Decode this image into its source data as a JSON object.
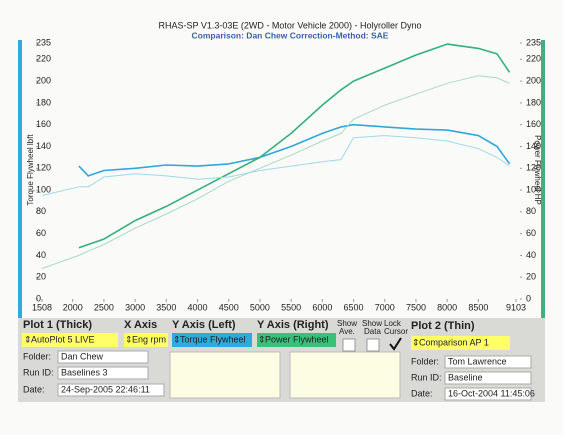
{
  "chart_data": {
    "type": "line",
    "title": "RHAS-SP V1.3-03E  (2WD - Motor Vehicle 2000) - Holyroller Dyno",
    "subtitle": "Comparison: Dan Chew   Correction-Method: SAE",
    "ylabel": "Torque Flywheel lbft",
    "y2label": "Power Flywheel HP",
    "x": [
      1508,
      2100,
      2250,
      2500,
      3000,
      3500,
      4000,
      4500,
      5000,
      5500,
      6000,
      6300,
      6500,
      7000,
      7500,
      8000,
      8500,
      8800,
      9000
    ],
    "xlim": [
      1508,
      9103
    ],
    "xticks": [
      1508,
      2000,
      2500,
      3000,
      3500,
      4000,
      4500,
      5000,
      5500,
      6000,
      6500,
      7000,
      7500,
      8000,
      8500,
      9103
    ],
    "ylim": [
      0,
      235
    ],
    "yticks": [
      0,
      20,
      40,
      60,
      80,
      100,
      120,
      140,
      160,
      180,
      200,
      220,
      235
    ],
    "y2lim": [
      0,
      235
    ],
    "y2ticks": [
      0,
      20,
      40,
      60,
      80,
      100,
      120,
      140,
      160,
      180,
      200,
      220,
      235
    ],
    "series": [
      {
        "name": "Torque Flywheel",
        "color": "#2ea8dc",
        "width": 1.6,
        "values": [
          null,
          122,
          113,
          118,
          120,
          123,
          122,
          124,
          130,
          140,
          152,
          158,
          160,
          158,
          156,
          155,
          150,
          140,
          124
        ]
      },
      {
        "name": "Power Flywheel",
        "color": "#35b07a",
        "width": 1.6,
        "axis": "y2",
        "values": [
          null,
          47,
          50,
          55,
          72,
          85,
          100,
          115,
          130,
          152,
          178,
          192,
          200,
          212,
          224,
          234,
          230,
          225,
          208
        ]
      },
      {
        "name": "Torque Flywheel",
        "color": "#9fd8ee",
        "width": 1,
        "values": [
          95,
          103,
          103,
          112,
          115,
          113,
          110,
          112,
          118,
          122,
          126,
          128,
          148,
          150,
          148,
          145,
          138,
          130,
          122
        ]
      },
      {
        "name": "Power Flywheel",
        "color": "#a6dcc2",
        "width": 1,
        "axis": "y2",
        "values": [
          28,
          40,
          44,
          50,
          65,
          78,
          92,
          108,
          120,
          132,
          145,
          152,
          165,
          178,
          188,
          198,
          205,
          203,
          198
        ]
      }
    ]
  },
  "panel": {
    "plot1": {
      "heading": "Plot 1 (Thick)",
      "select": "AutoPlot 5 LIVE",
      "folder_label": "Folder:",
      "folder": "Dan Chew",
      "run_label": "Run ID:",
      "run": "Baselines 3",
      "date_label": "Date:",
      "date": "24-Sep-2005  22:46:11"
    },
    "x_axis": {
      "heading": "X Axis",
      "select": "Eng rpm"
    },
    "y_left": {
      "heading": "Y Axis (Left)",
      "select": "Torque Flywheel"
    },
    "y_right": {
      "heading": "Y Axis (Right)",
      "select": "Power Flywheel"
    },
    "show_ave": [
      "Show",
      "Ave."
    ],
    "show_data": [
      "Show",
      "Data"
    ],
    "lock_cursor": [
      "Lock",
      "Cursor"
    ],
    "plot2": {
      "heading": "Plot 2 (Thin)",
      "select": "Comparison AP 1",
      "folder_label": "Folder:",
      "folder": "Tom Lawrence",
      "run_label": "Run ID:",
      "run": "Baseline",
      "date_label": "Date:",
      "date": "16-Oct-2004  11:45:06"
    }
  }
}
